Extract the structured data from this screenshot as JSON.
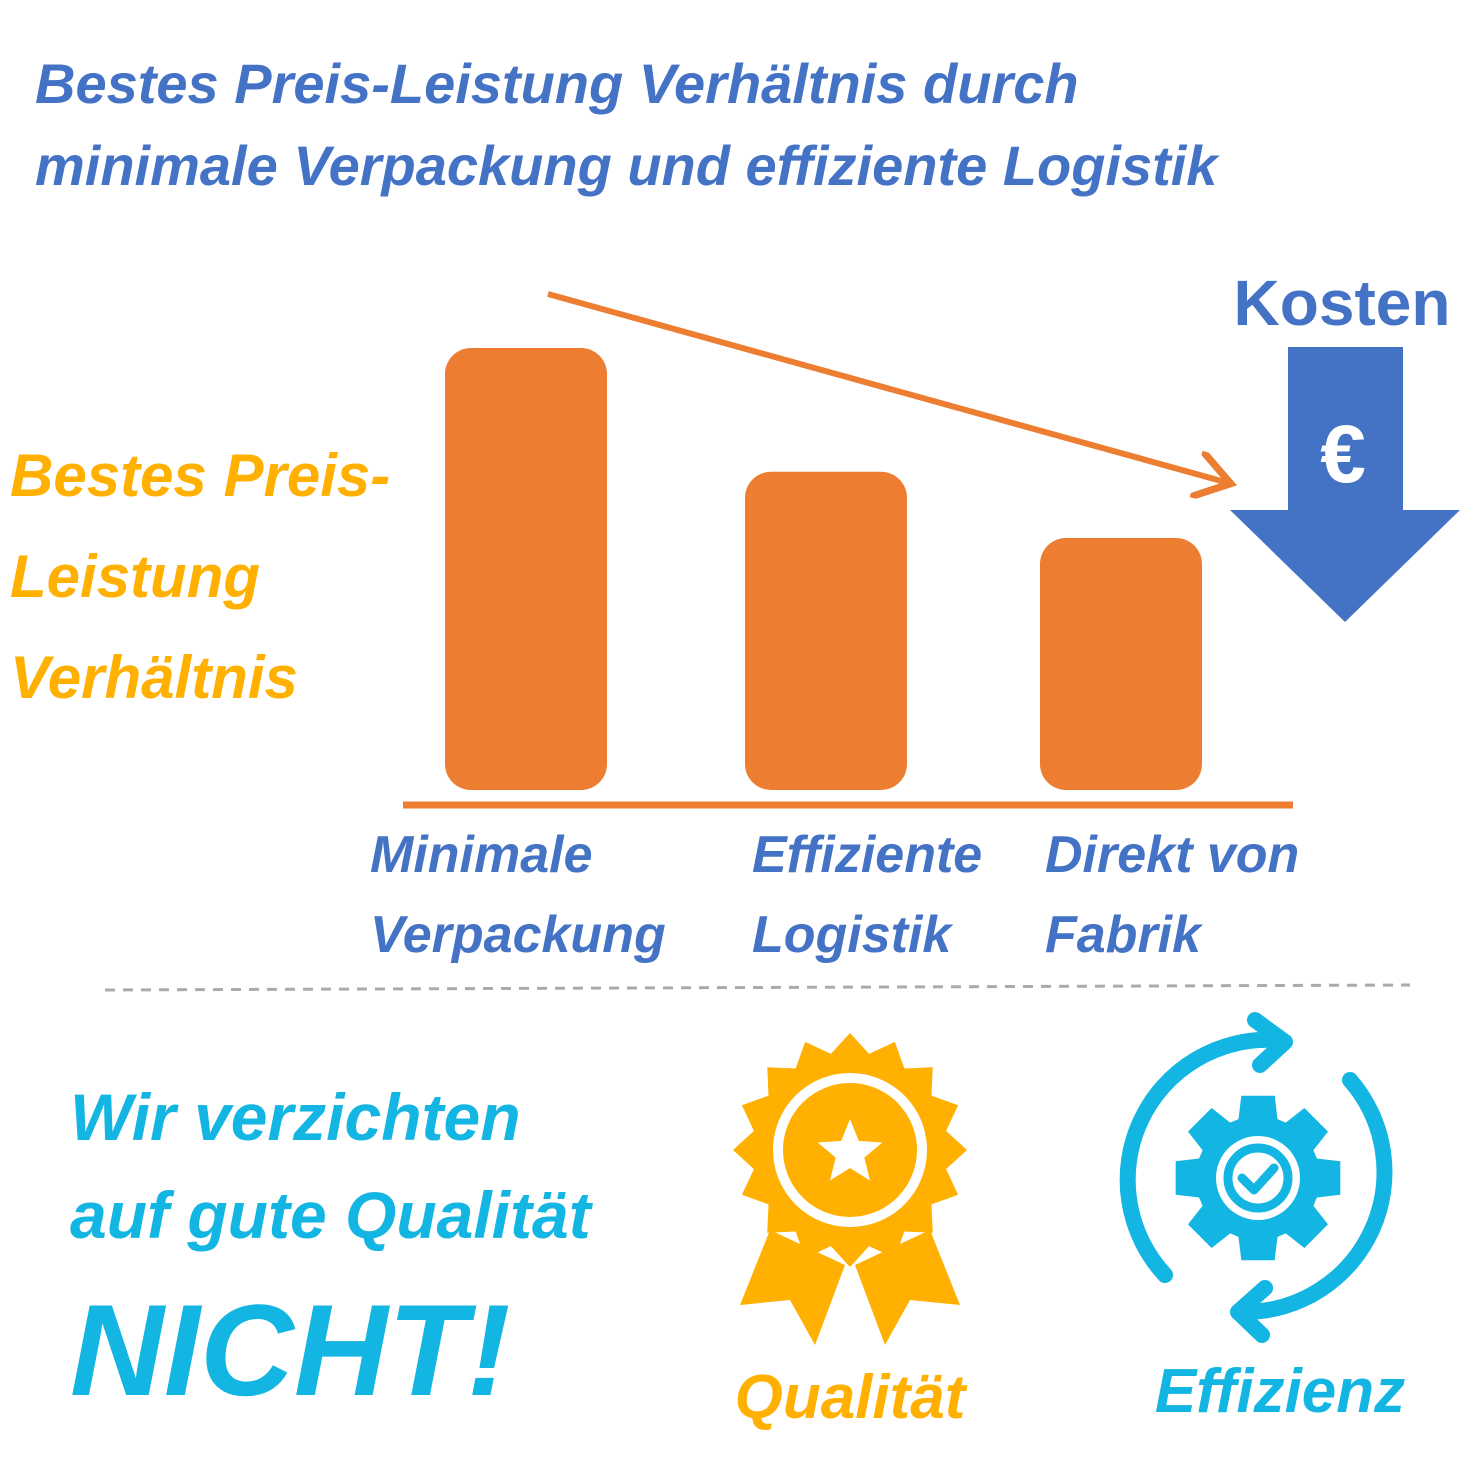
{
  "chart_data": {
    "type": "bar",
    "title": [
      "Bestes Preis-Leistung Verhältnis durch",
      "minimale Verpackung und effiziente Logistik"
    ],
    "y_label": "Bestes Preis-Leistung Verhältnis",
    "categories": [
      "Minimale Verpackung",
      "Effiziente Logistik",
      "Direkt von Fabrik"
    ],
    "values": [
      100,
      72,
      57
    ],
    "color": "#ed7d31",
    "annotation": {
      "label": "Kosten",
      "symbol": "€"
    }
  },
  "footer": {
    "message": [
      "Wir verzichten",
      "auf gute Qualität",
      "NICHT!"
    ],
    "icons": [
      "Qualität",
      "Effizienz"
    ]
  }
}
